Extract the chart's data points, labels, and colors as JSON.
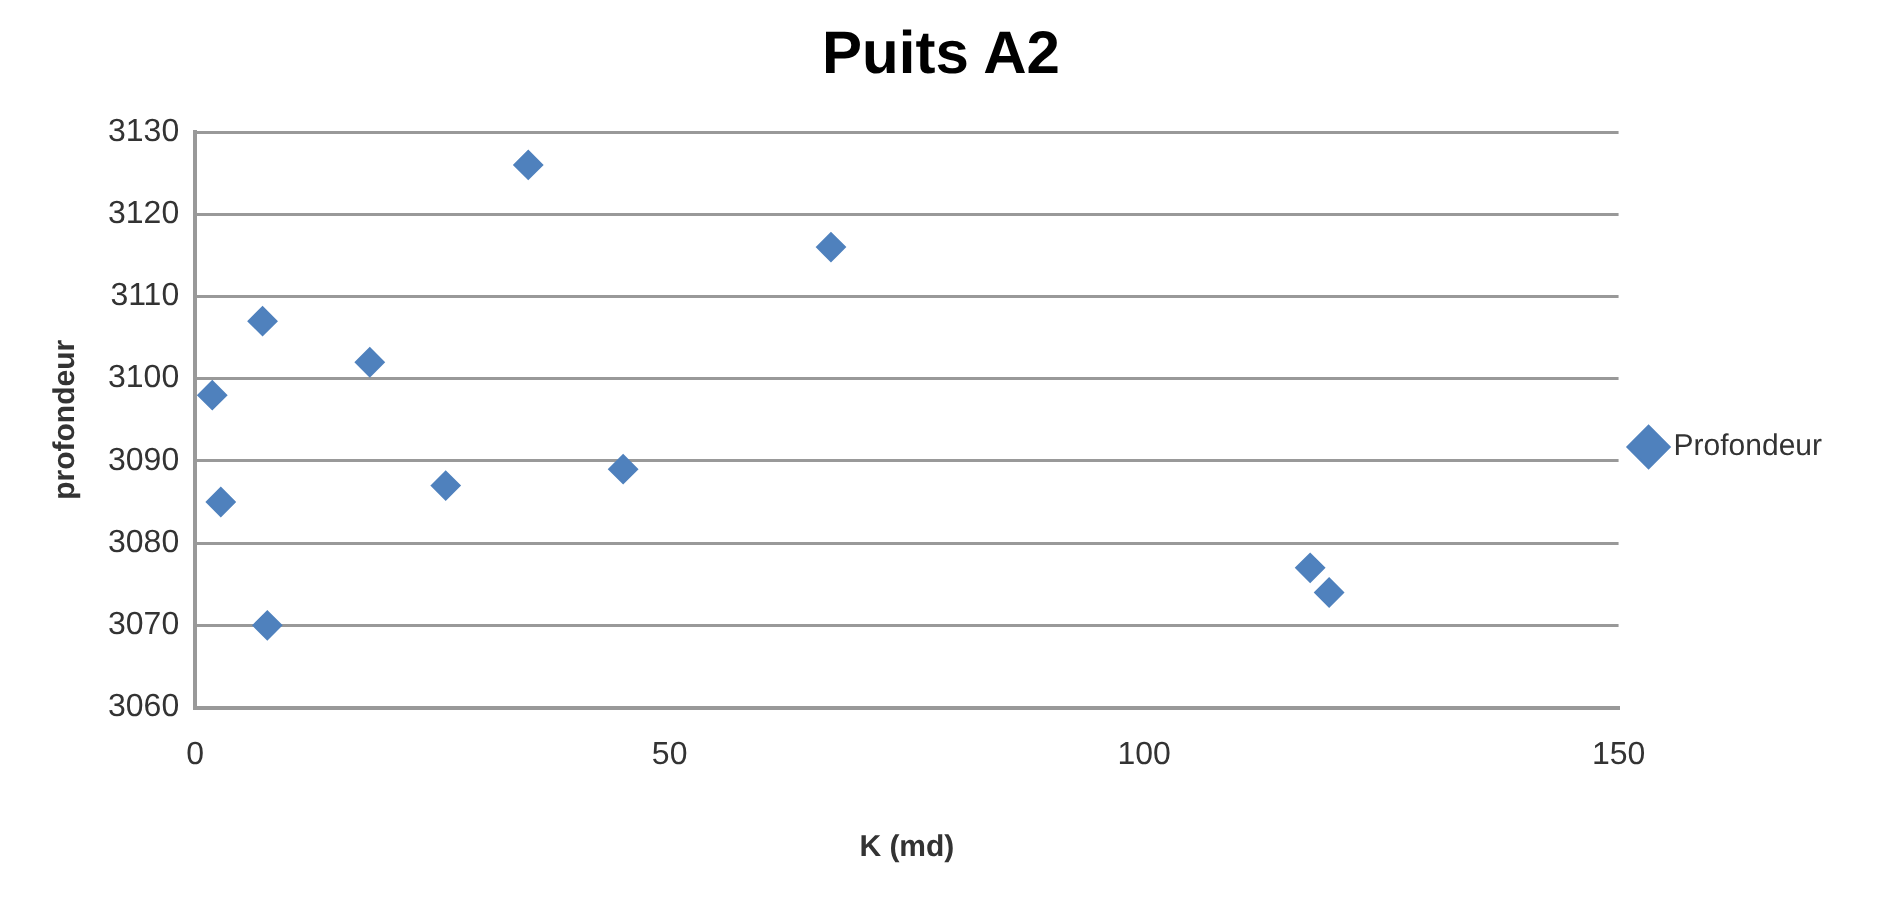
{
  "chart_data": {
    "type": "scatter",
    "title": "Puits A2",
    "xlabel": "K (md)",
    "ylabel": "profondeur",
    "series": [
      {
        "name": "Profondeur",
        "color": "#4f81bd",
        "x": [
          1.8,
          2.7,
          7.1,
          7.6,
          18.4,
          26.4,
          35.1,
          45.1,
          67,
          117.5,
          119.5
        ],
        "values": [
          3098,
          3085,
          3107,
          3070,
          3102,
          3087,
          3126,
          3089,
          3116,
          3077,
          3074
        ]
      }
    ],
    "xlim": [
      0,
      150
    ],
    "xticks": [
      0,
      50,
      100,
      150
    ],
    "ylim": [
      3060,
      3130
    ],
    "yticks": [
      3060,
      3070,
      3080,
      3090,
      3100,
      3110,
      3120,
      3130
    ],
    "grid": "y",
    "legend": "right",
    "marker": "diamond"
  }
}
